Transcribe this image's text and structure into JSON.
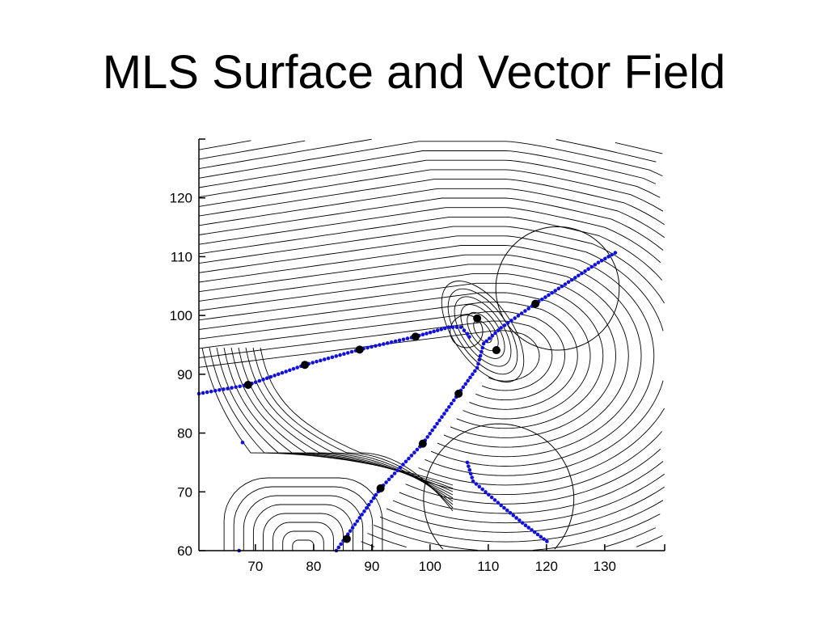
{
  "slide": {
    "title": "MLS Surface and Vector Field"
  },
  "chart_data": {
    "type": "scatter",
    "title": "MLS Surface and Vector Field",
    "xlabel": "",
    "ylabel": "",
    "xlim": [
      60.3,
      140.3
    ],
    "ylim": [
      60,
      130
    ],
    "xticks": [
      70,
      80,
      90,
      100,
      110,
      120,
      130
    ],
    "yticks": [
      60,
      70,
      80,
      90,
      100,
      110,
      120
    ],
    "grid": false,
    "colors": {
      "curve": "#1010e0",
      "points": "#000000",
      "streamlines": "#000000"
    },
    "points": [
      [
        68.75,
        88.2
      ],
      [
        78.5,
        91.6
      ],
      [
        87.9,
        94.2
      ],
      [
        97.5,
        96.4
      ],
      [
        108.1,
        99.5
      ],
      [
        111.4,
        94.1
      ],
      [
        118.1,
        102
      ],
      [
        104.9,
        86.7
      ],
      [
        98.75,
        78.2
      ],
      [
        91.5,
        70.6
      ],
      [
        85.7,
        62
      ]
    ],
    "circles": [
      {
        "center": [
          121.9,
          104.6
        ],
        "radius": 10.6
      },
      {
        "center": [
          106.25,
          97.3
        ],
        "radius": 2.8
      },
      {
        "center": [
          111.8,
          68.8
        ],
        "radius": 12.9
      }
    ],
    "blue_curves": [
      [
        [
          60.3,
          86.7
        ],
        [
          68.75,
          88.2
        ],
        [
          78.5,
          91.6
        ],
        [
          87.9,
          94.2
        ],
        [
          97.5,
          96.4
        ],
        [
          103.2,
          98.0
        ],
        [
          105.3,
          98.0
        ],
        [
          106.4,
          96.9
        ],
        [
          107.1,
          95.8
        ]
      ],
      [
        [
          83.9,
          60
        ],
        [
          91.5,
          70.6
        ],
        [
          98.75,
          78.2
        ],
        [
          104.9,
          86.7
        ],
        [
          108.1,
          91.1
        ],
        [
          109.2,
          95.2
        ],
        [
          112.2,
          97.9
        ],
        [
          118.1,
          102
        ],
        [
          128.9,
          109
        ],
        [
          132.4,
          111
        ]
      ],
      [
        [
          106.4,
          75
        ],
        [
          107.4,
          71.8
        ],
        [
          112.2,
          67.7
        ],
        [
          116.4,
          64.3
        ],
        [
          120.6,
          61.2
        ]
      ]
    ],
    "blue_isolated": [
      [
        67.8,
        78.4
      ],
      [
        67.2,
        60
      ]
    ]
  }
}
